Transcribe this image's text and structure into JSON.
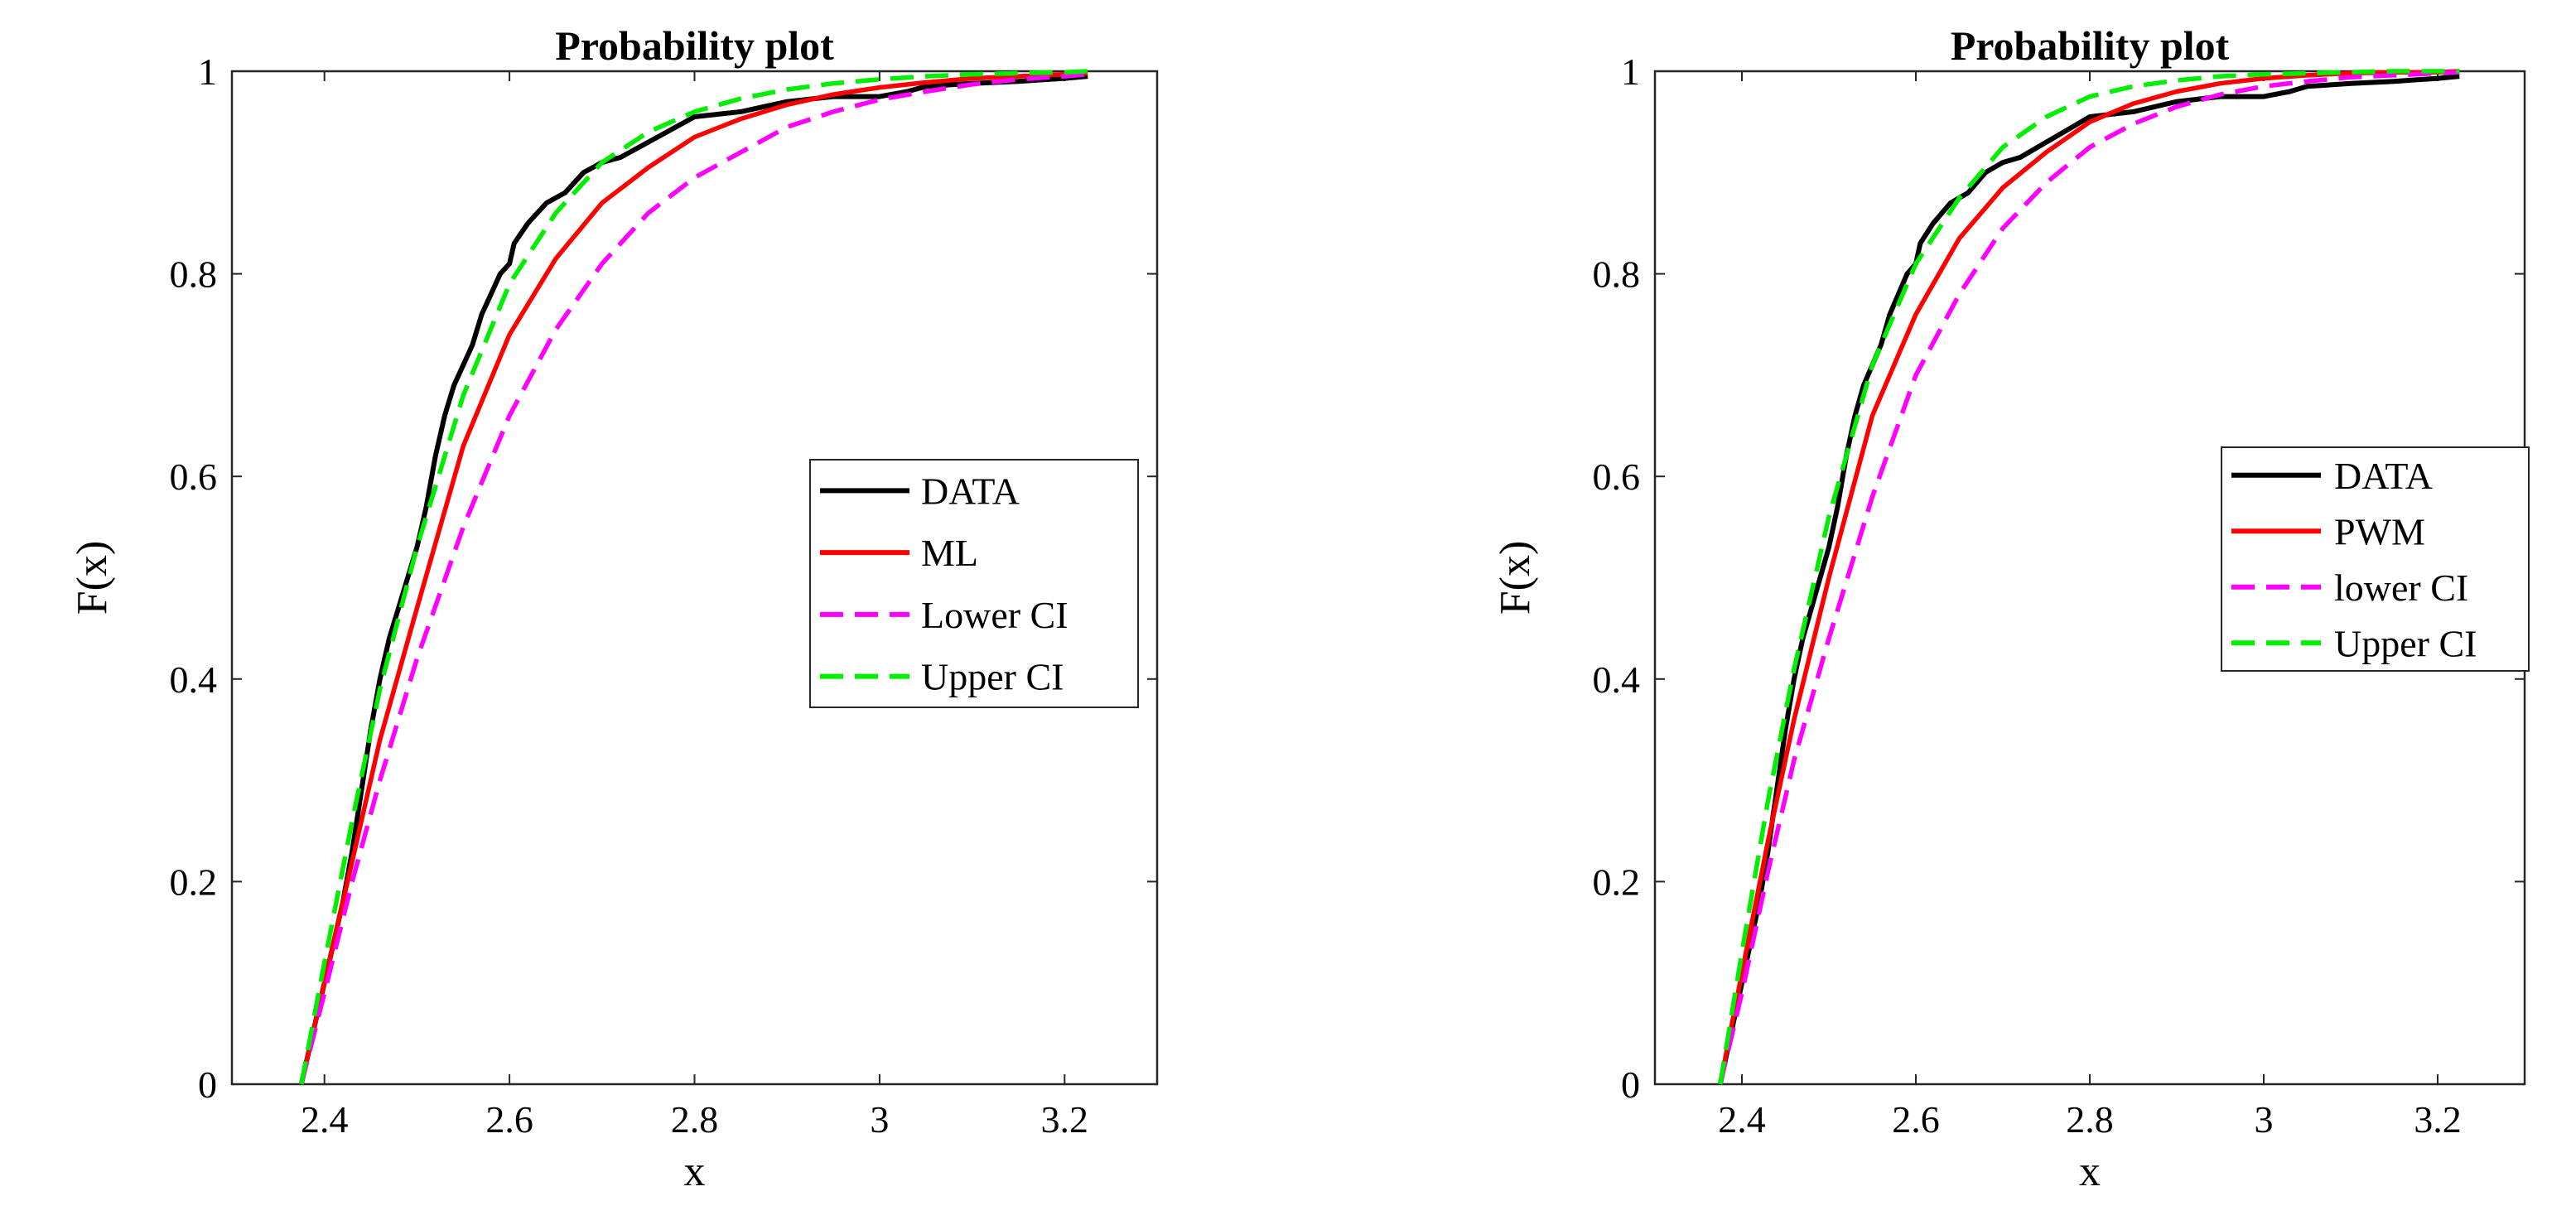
{
  "chart_data": [
    {
      "type": "line",
      "title": "Probability plot",
      "xlabel": "x",
      "ylabel": "F(x)",
      "xlim": [
        2.3,
        3.3
      ],
      "ylim": [
        0,
        1
      ],
      "xticks": [
        2.4,
        2.6,
        2.8,
        3,
        3.2
      ],
      "xtick_labels": [
        "2.4",
        "2.6",
        "2.8",
        "3",
        "3.2"
      ],
      "yticks": [
        0,
        0.2,
        0.4,
        0.6,
        0.8,
        1
      ],
      "ytick_labels": [
        "0",
        "0.2",
        "0.4",
        "0.6",
        "0.8",
        "1"
      ],
      "legend_position": "center-right",
      "series": [
        {
          "name": "DATA",
          "label": "DATA",
          "color": "#000000",
          "style": "solid",
          "x": [
            2.375,
            2.39,
            2.405,
            2.42,
            2.43,
            2.44,
            2.45,
            2.46,
            2.47,
            2.48,
            2.49,
            2.5,
            2.51,
            2.52,
            2.53,
            2.54,
            2.55,
            2.56,
            2.57,
            2.58,
            2.59,
            2.6,
            2.605,
            2.62,
            2.64,
            2.66,
            2.68,
            2.7,
            2.72,
            2.75,
            2.78,
            2.8,
            2.85,
            2.9,
            2.95,
            3.0,
            3.03,
            3.05,
            3.1,
            3.15,
            3.2,
            3.225
          ],
          "y": [
            0.0,
            0.06,
            0.12,
            0.18,
            0.23,
            0.29,
            0.35,
            0.4,
            0.44,
            0.47,
            0.5,
            0.53,
            0.57,
            0.62,
            0.66,
            0.69,
            0.71,
            0.73,
            0.76,
            0.78,
            0.8,
            0.81,
            0.83,
            0.85,
            0.87,
            0.88,
            0.9,
            0.91,
            0.915,
            0.93,
            0.945,
            0.955,
            0.96,
            0.97,
            0.975,
            0.975,
            0.98,
            0.985,
            0.988,
            0.99,
            0.993,
            0.995
          ]
        },
        {
          "name": "ML",
          "label": "ML",
          "color": "#ff0000",
          "style": "solid",
          "x": [
            2.375,
            2.4,
            2.43,
            2.46,
            2.5,
            2.55,
            2.6,
            2.65,
            2.7,
            2.75,
            2.8,
            2.85,
            2.9,
            2.95,
            3.0,
            3.05,
            3.1,
            3.15,
            3.2,
            3.225
          ],
          "y": [
            0.0,
            0.1,
            0.22,
            0.34,
            0.47,
            0.63,
            0.74,
            0.815,
            0.87,
            0.905,
            0.935,
            0.953,
            0.967,
            0.977,
            0.984,
            0.989,
            0.993,
            0.995,
            0.997,
            0.998
          ]
        },
        {
          "name": "Lower CI",
          "label": "Lower CI",
          "color": "#ff00ff",
          "style": "dashed",
          "x": [
            2.375,
            2.4,
            2.43,
            2.46,
            2.5,
            2.55,
            2.6,
            2.65,
            2.7,
            2.75,
            2.8,
            2.85,
            2.9,
            2.95,
            3.0,
            3.05,
            3.1,
            3.15,
            3.2,
            3.225
          ],
          "y": [
            0.0,
            0.09,
            0.2,
            0.3,
            0.42,
            0.55,
            0.66,
            0.745,
            0.81,
            0.86,
            0.895,
            0.92,
            0.945,
            0.96,
            0.972,
            0.98,
            0.987,
            0.992,
            0.995,
            0.997
          ]
        },
        {
          "name": "Upper CI",
          "label": " Upper CI",
          "color": "#00ee00",
          "style": "dashed",
          "x": [
            2.375,
            2.4,
            2.43,
            2.46,
            2.5,
            2.55,
            2.6,
            2.65,
            2.7,
            2.75,
            2.8,
            2.85,
            2.9,
            2.95,
            3.0,
            3.05,
            3.1,
            3.15,
            3.2,
            3.225
          ],
          "y": [
            0.0,
            0.12,
            0.26,
            0.39,
            0.53,
            0.68,
            0.79,
            0.86,
            0.91,
            0.94,
            0.96,
            0.973,
            0.982,
            0.988,
            0.992,
            0.995,
            0.997,
            0.998,
            0.999,
            1.0
          ]
        }
      ]
    },
    {
      "type": "line",
      "title": "Probability plot",
      "xlabel": "x",
      "ylabel": "F(x)",
      "xlim": [
        2.3,
        3.3
      ],
      "ylim": [
        0,
        1
      ],
      "xticks": [
        2.4,
        2.6,
        2.8,
        3,
        3.2
      ],
      "xtick_labels": [
        "2.4",
        "2.6",
        "2.8",
        "3",
        "3.2"
      ],
      "yticks": [
        0,
        0.2,
        0.4,
        0.6,
        0.8,
        1
      ],
      "ytick_labels": [
        "0",
        "0.2",
        "0.4",
        "0.6",
        "0.8",
        "1"
      ],
      "legend_position": "center-right",
      "series": [
        {
          "name": "DATA",
          "label": "DATA",
          "color": "#000000",
          "style": "solid",
          "x": [
            2.375,
            2.39,
            2.405,
            2.42,
            2.43,
            2.44,
            2.45,
            2.46,
            2.47,
            2.48,
            2.49,
            2.5,
            2.51,
            2.52,
            2.53,
            2.54,
            2.55,
            2.56,
            2.57,
            2.58,
            2.59,
            2.6,
            2.605,
            2.62,
            2.64,
            2.66,
            2.68,
            2.7,
            2.72,
            2.75,
            2.78,
            2.8,
            2.85,
            2.9,
            2.95,
            3.0,
            3.03,
            3.05,
            3.1,
            3.15,
            3.2,
            3.225
          ],
          "y": [
            0.0,
            0.06,
            0.12,
            0.18,
            0.23,
            0.29,
            0.35,
            0.4,
            0.44,
            0.47,
            0.5,
            0.53,
            0.57,
            0.62,
            0.66,
            0.69,
            0.71,
            0.73,
            0.76,
            0.78,
            0.8,
            0.81,
            0.83,
            0.85,
            0.87,
            0.88,
            0.9,
            0.91,
            0.915,
            0.93,
            0.945,
            0.955,
            0.96,
            0.97,
            0.975,
            0.975,
            0.98,
            0.985,
            0.988,
            0.99,
            0.993,
            0.995
          ]
        },
        {
          "name": "PWM",
          "label": "PWM",
          "color": "#ff0000",
          "style": "solid",
          "x": [
            2.375,
            2.4,
            2.43,
            2.46,
            2.5,
            2.55,
            2.6,
            2.65,
            2.7,
            2.75,
            2.8,
            2.85,
            2.9,
            2.95,
            3.0,
            3.05,
            3.1,
            3.15,
            3.2,
            3.225
          ],
          "y": [
            0.0,
            0.11,
            0.24,
            0.36,
            0.5,
            0.66,
            0.76,
            0.835,
            0.885,
            0.92,
            0.95,
            0.968,
            0.98,
            0.988,
            0.993,
            0.996,
            0.998,
            0.999,
            0.999,
            1.0
          ]
        },
        {
          "name": "lower CI",
          "label": "lower CI",
          "color": "#ff00ff",
          "style": "dashed",
          "x": [
            2.375,
            2.4,
            2.43,
            2.46,
            2.5,
            2.55,
            2.6,
            2.65,
            2.7,
            2.75,
            2.8,
            2.85,
            2.9,
            2.95,
            3.0,
            3.05,
            3.1,
            3.15,
            3.2,
            3.225
          ],
          "y": [
            0.0,
            0.09,
            0.21,
            0.32,
            0.44,
            0.58,
            0.7,
            0.78,
            0.845,
            0.89,
            0.925,
            0.948,
            0.965,
            0.977,
            0.985,
            0.99,
            0.994,
            0.996,
            0.998,
            0.999
          ]
        },
        {
          "name": "Upper CI",
          "label": "Upper CI",
          "color": "#00ee00",
          "style": "dashed",
          "x": [
            2.375,
            2.4,
            2.43,
            2.46,
            2.5,
            2.55,
            2.6,
            2.65,
            2.7,
            2.75,
            2.8,
            2.85,
            2.9,
            2.95,
            3.0,
            3.05,
            3.1,
            3.15,
            3.2,
            3.225
          ],
          "y": [
            0.0,
            0.13,
            0.28,
            0.41,
            0.56,
            0.71,
            0.81,
            0.875,
            0.925,
            0.955,
            0.975,
            0.985,
            0.991,
            0.995,
            0.997,
            0.998,
            0.999,
            1.0,
            1.0,
            1.0
          ]
        }
      ]
    }
  ]
}
